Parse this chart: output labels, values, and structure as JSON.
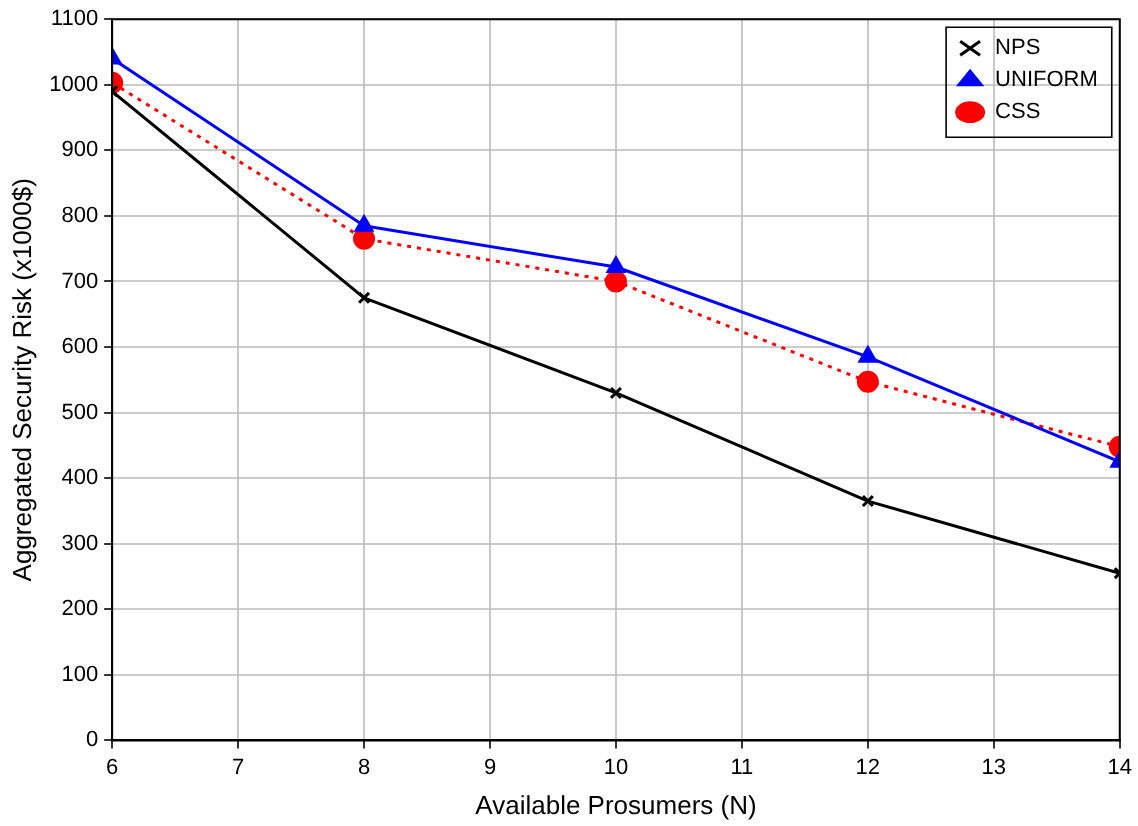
{
  "chart_data": {
    "type": "line",
    "xlabel": "Available Prosumers (N)",
    "ylabel": "Aggregated Security Risk (x1000$)",
    "x": [
      6,
      8,
      10,
      12,
      14
    ],
    "series": [
      {
        "name": "NPS",
        "color": "#000000",
        "marker": "cross",
        "line_style": "solid",
        "values": [
          990,
          675,
          530,
          365,
          255
        ]
      },
      {
        "name": "UNIFORM",
        "color": "#0000ff",
        "marker": "triangle",
        "line_style": "solid",
        "values": [
          1040,
          785,
          722,
          585,
          425
        ]
      },
      {
        "name": "CSS",
        "color": "#ff0000",
        "marker": "circle",
        "line_style": "dotted",
        "values": [
          1003,
          765,
          700,
          547,
          448
        ]
      }
    ],
    "xlim": [
      6,
      14
    ],
    "xticks": [
      6,
      7,
      8,
      9,
      10,
      11,
      12,
      13,
      14
    ],
    "ylim": [
      0,
      1100
    ],
    "yticks": [
      0,
      100,
      200,
      300,
      400,
      500,
      600,
      700,
      800,
      900,
      1000,
      1100
    ],
    "grid": true,
    "legend": "top right"
  }
}
